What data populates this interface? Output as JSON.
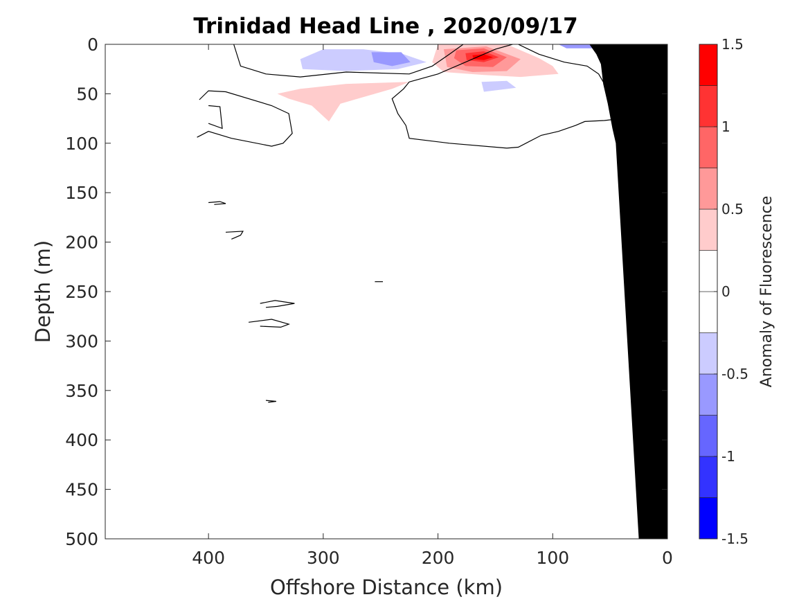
{
  "chart_data": {
    "type": "contour",
    "title": "Trinidad Head Line , 2020/09/17",
    "xlabel": "Offshore Distance (km)",
    "ylabel": "Depth (m)",
    "xlim": [
      490,
      0
    ],
    "ylim": [
      0,
      500
    ],
    "x_reversed": true,
    "y_reversed": true,
    "x_ticks": [
      400,
      300,
      200,
      100,
      0
    ],
    "x_tick_labels": [
      "400",
      "300",
      "200",
      "100",
      "0"
    ],
    "y_ticks": [
      0,
      50,
      100,
      150,
      200,
      250,
      300,
      350,
      400,
      450,
      500
    ],
    "y_tick_labels": [
      "0",
      "50",
      "100",
      "150",
      "200",
      "250",
      "300",
      "350",
      "400",
      "450",
      "500"
    ],
    "colorbar": {
      "label": "Anomaly of Fluorescence",
      "range": [
        -1.5,
        1.5
      ],
      "levels": [
        -1.5,
        -1.25,
        -1.0,
        -0.75,
        -0.5,
        -0.25,
        0,
        0.25,
        0.5,
        0.75,
        1.0,
        1.25,
        1.5
      ],
      "colors": [
        "#0000ff",
        "#3333ff",
        "#6666ff",
        "#9999ff",
        "#ccccff",
        "#ffffff",
        "#ffffff",
        "#ffcccc",
        "#ff9999",
        "#ff6666",
        "#ff3333",
        "#ff0000"
      ],
      "ticks": [
        1.5,
        1,
        0.5,
        0,
        -0.5,
        -1,
        -1.5
      ],
      "tick_labels": [
        "1.5",
        "1",
        "0.5",
        "0",
        "-0.5",
        "-1",
        "-1.5"
      ]
    },
    "filled_regions": [
      {
        "level": -0.25,
        "points": [
          [
            355,
            0
          ],
          [
            205,
            0
          ],
          [
            225,
            15
          ],
          [
            260,
            22
          ],
          [
            320,
            25
          ],
          [
            345,
            18
          ]
        ]
      },
      {
        "level": -0.5,
        "points": [
          [
            320,
            15
          ],
          [
            300,
            5
          ],
          [
            265,
            5
          ],
          [
            230,
            10
          ],
          [
            210,
            18
          ],
          [
            235,
            25
          ],
          [
            280,
            27
          ],
          [
            318,
            25
          ]
        ]
      },
      {
        "level": -0.75,
        "points": [
          [
            258,
            8
          ],
          [
            232,
            8
          ],
          [
            224,
            18
          ],
          [
            240,
            22
          ],
          [
            256,
            18
          ]
        ]
      },
      {
        "level": -0.25,
        "points": [
          [
            180,
            35
          ],
          [
            160,
            30
          ],
          [
            125,
            35
          ],
          [
            118,
            45
          ],
          [
            140,
            60
          ],
          [
            168,
            58
          ],
          [
            182,
            48
          ]
        ]
      },
      {
        "level": -0.5,
        "points": [
          [
            162,
            38
          ],
          [
            140,
            37
          ],
          [
            132,
            44
          ],
          [
            160,
            48
          ]
        ]
      },
      {
        "level": -0.25,
        "points": [
          [
            105,
            0
          ],
          [
            35,
            0
          ],
          [
            45,
            5
          ],
          [
            75,
            8
          ],
          [
            100,
            5
          ]
        ]
      },
      {
        "level": -0.75,
        "points": [
          [
            95,
            0
          ],
          [
            48,
            0
          ],
          [
            60,
            4
          ],
          [
            88,
            4
          ]
        ]
      },
      {
        "level": -0.25,
        "points": [
          [
            70,
            20
          ],
          [
            62,
            18
          ],
          [
            58,
            35
          ],
          [
            64,
            38
          ]
        ]
      },
      {
        "level": 0.25,
        "points": [
          [
            200,
            0
          ],
          [
            140,
            0
          ],
          [
            112,
            14
          ],
          [
            100,
            22
          ],
          [
            95,
            30
          ],
          [
            128,
            33
          ],
          [
            160,
            31
          ],
          [
            195,
            28
          ],
          [
            205,
            18
          ]
        ]
      },
      {
        "level": 0.5,
        "points": [
          [
            195,
            5
          ],
          [
            158,
            2
          ],
          [
            128,
            15
          ],
          [
            140,
            27
          ],
          [
            170,
            28
          ],
          [
            192,
            23
          ]
        ]
      },
      {
        "level": 0.75,
        "points": [
          [
            184,
            6
          ],
          [
            160,
            4
          ],
          [
            140,
            13
          ],
          [
            152,
            23
          ],
          [
            176,
            22
          ],
          [
            186,
            14
          ]
        ]
      },
      {
        "level": 1.0,
        "points": [
          [
            176,
            9
          ],
          [
            160,
            7
          ],
          [
            147,
            13
          ],
          [
            160,
            18
          ],
          [
            175,
            16
          ]
        ]
      },
      {
        "level": 1.25,
        "points": [
          [
            170,
            11
          ],
          [
            160,
            10
          ],
          [
            152,
            13
          ],
          [
            160,
            16
          ],
          [
            169,
            15
          ]
        ]
      },
      {
        "level": 0.25,
        "points": [
          [
            340,
            50
          ],
          [
            320,
            45
          ],
          [
            280,
            40
          ],
          [
            225,
            38
          ],
          [
            240,
            45
          ],
          [
            285,
            60
          ],
          [
            295,
            78
          ],
          [
            310,
            62
          ],
          [
            330,
            55
          ]
        ]
      }
    ],
    "zero_contours": [
      [
        [
          378,
          0
        ],
        [
          372,
          22
        ],
        [
          350,
          30
        ],
        [
          320,
          33
        ],
        [
          280,
          28
        ],
        [
          225,
          30
        ],
        [
          205,
          22
        ],
        [
          190,
          10
        ],
        [
          178,
          0
        ]
      ],
      [
        [
          130,
          0
        ],
        [
          112,
          10
        ],
        [
          90,
          18
        ],
        [
          70,
          22
        ],
        [
          60,
          30
        ],
        [
          55,
          40
        ],
        [
          45,
          48
        ],
        [
          30,
          65
        ],
        [
          25,
          75
        ],
        [
          18,
          85
        ],
        [
          12,
          95
        ]
      ],
      [
        [
          135,
          0
        ],
        [
          150,
          5
        ],
        [
          180,
          20
        ],
        [
          200,
          30
        ],
        [
          225,
          38
        ]
      ],
      [
        [
          408,
          56
        ],
        [
          400,
          47
        ],
        [
          385,
          48
        ],
        [
          345,
          62
        ],
        [
          330,
          70
        ],
        [
          327,
          90
        ],
        [
          335,
          100
        ],
        [
          345,
          103
        ],
        [
          380,
          95
        ],
        [
          400,
          88
        ],
        [
          410,
          94
        ]
      ],
      [
        [
          400,
          62
        ],
        [
          390,
          63
        ],
        [
          388,
          85
        ],
        [
          400,
          80
        ]
      ],
      [
        [
          225,
          38
        ],
        [
          230,
          45
        ],
        [
          240,
          55
        ],
        [
          235,
          70
        ],
        [
          228,
          82
        ],
        [
          225,
          95
        ],
        [
          190,
          100
        ],
        [
          140,
          105
        ],
        [
          130,
          104
        ],
        [
          110,
          92
        ],
        [
          95,
          88
        ],
        [
          80,
          82
        ],
        [
          72,
          78
        ],
        [
          55,
          77
        ],
        [
          40,
          75
        ],
        [
          37,
          70
        ],
        [
          35,
          60
        ],
        [
          33,
          45
        ],
        [
          38,
          38
        ],
        [
          30,
          32
        ]
      ],
      [
        [
          42,
          28
        ],
        [
          38,
          22
        ],
        [
          35,
          15
        ],
        [
          40,
          12
        ],
        [
          50,
          12
        ],
        [
          52,
          18
        ],
        [
          48,
          25
        ],
        [
          45,
          30
        ],
        [
          52,
          35
        ]
      ]
    ],
    "small_contours": [
      [
        [
          400,
          160
        ],
        [
          390,
          159
        ],
        [
          385,
          161
        ],
        [
          395,
          162
        ]
      ],
      [
        [
          385,
          190
        ],
        [
          370,
          189
        ],
        [
          372,
          193
        ],
        [
          380,
          197
        ]
      ],
      [
        [
          255,
          240
        ],
        [
          248,
          240
        ]
      ],
      [
        [
          355,
          262
        ],
        [
          342,
          259
        ],
        [
          325,
          262
        ],
        [
          340,
          265
        ],
        [
          350,
          266
        ]
      ],
      [
        [
          365,
          281
        ],
        [
          345,
          278
        ],
        [
          330,
          283
        ],
        [
          337,
          286
        ],
        [
          355,
          285
        ]
      ],
      [
        [
          350,
          360
        ],
        [
          341,
          361
        ],
        [
          348,
          362
        ]
      ]
    ],
    "bathymetry": {
      "color": "#000000",
      "points": [
        [
          0,
          0
        ],
        [
          0,
          500
        ],
        [
          25,
          500
        ],
        [
          30,
          400
        ],
        [
          35,
          300
        ],
        [
          40,
          200
        ],
        [
          45,
          100
        ],
        [
          48,
          85
        ],
        [
          52,
          60
        ],
        [
          56,
          40
        ],
        [
          58,
          20
        ],
        [
          62,
          10
        ],
        [
          65,
          5
        ],
        [
          68,
          0
        ]
      ]
    }
  }
}
